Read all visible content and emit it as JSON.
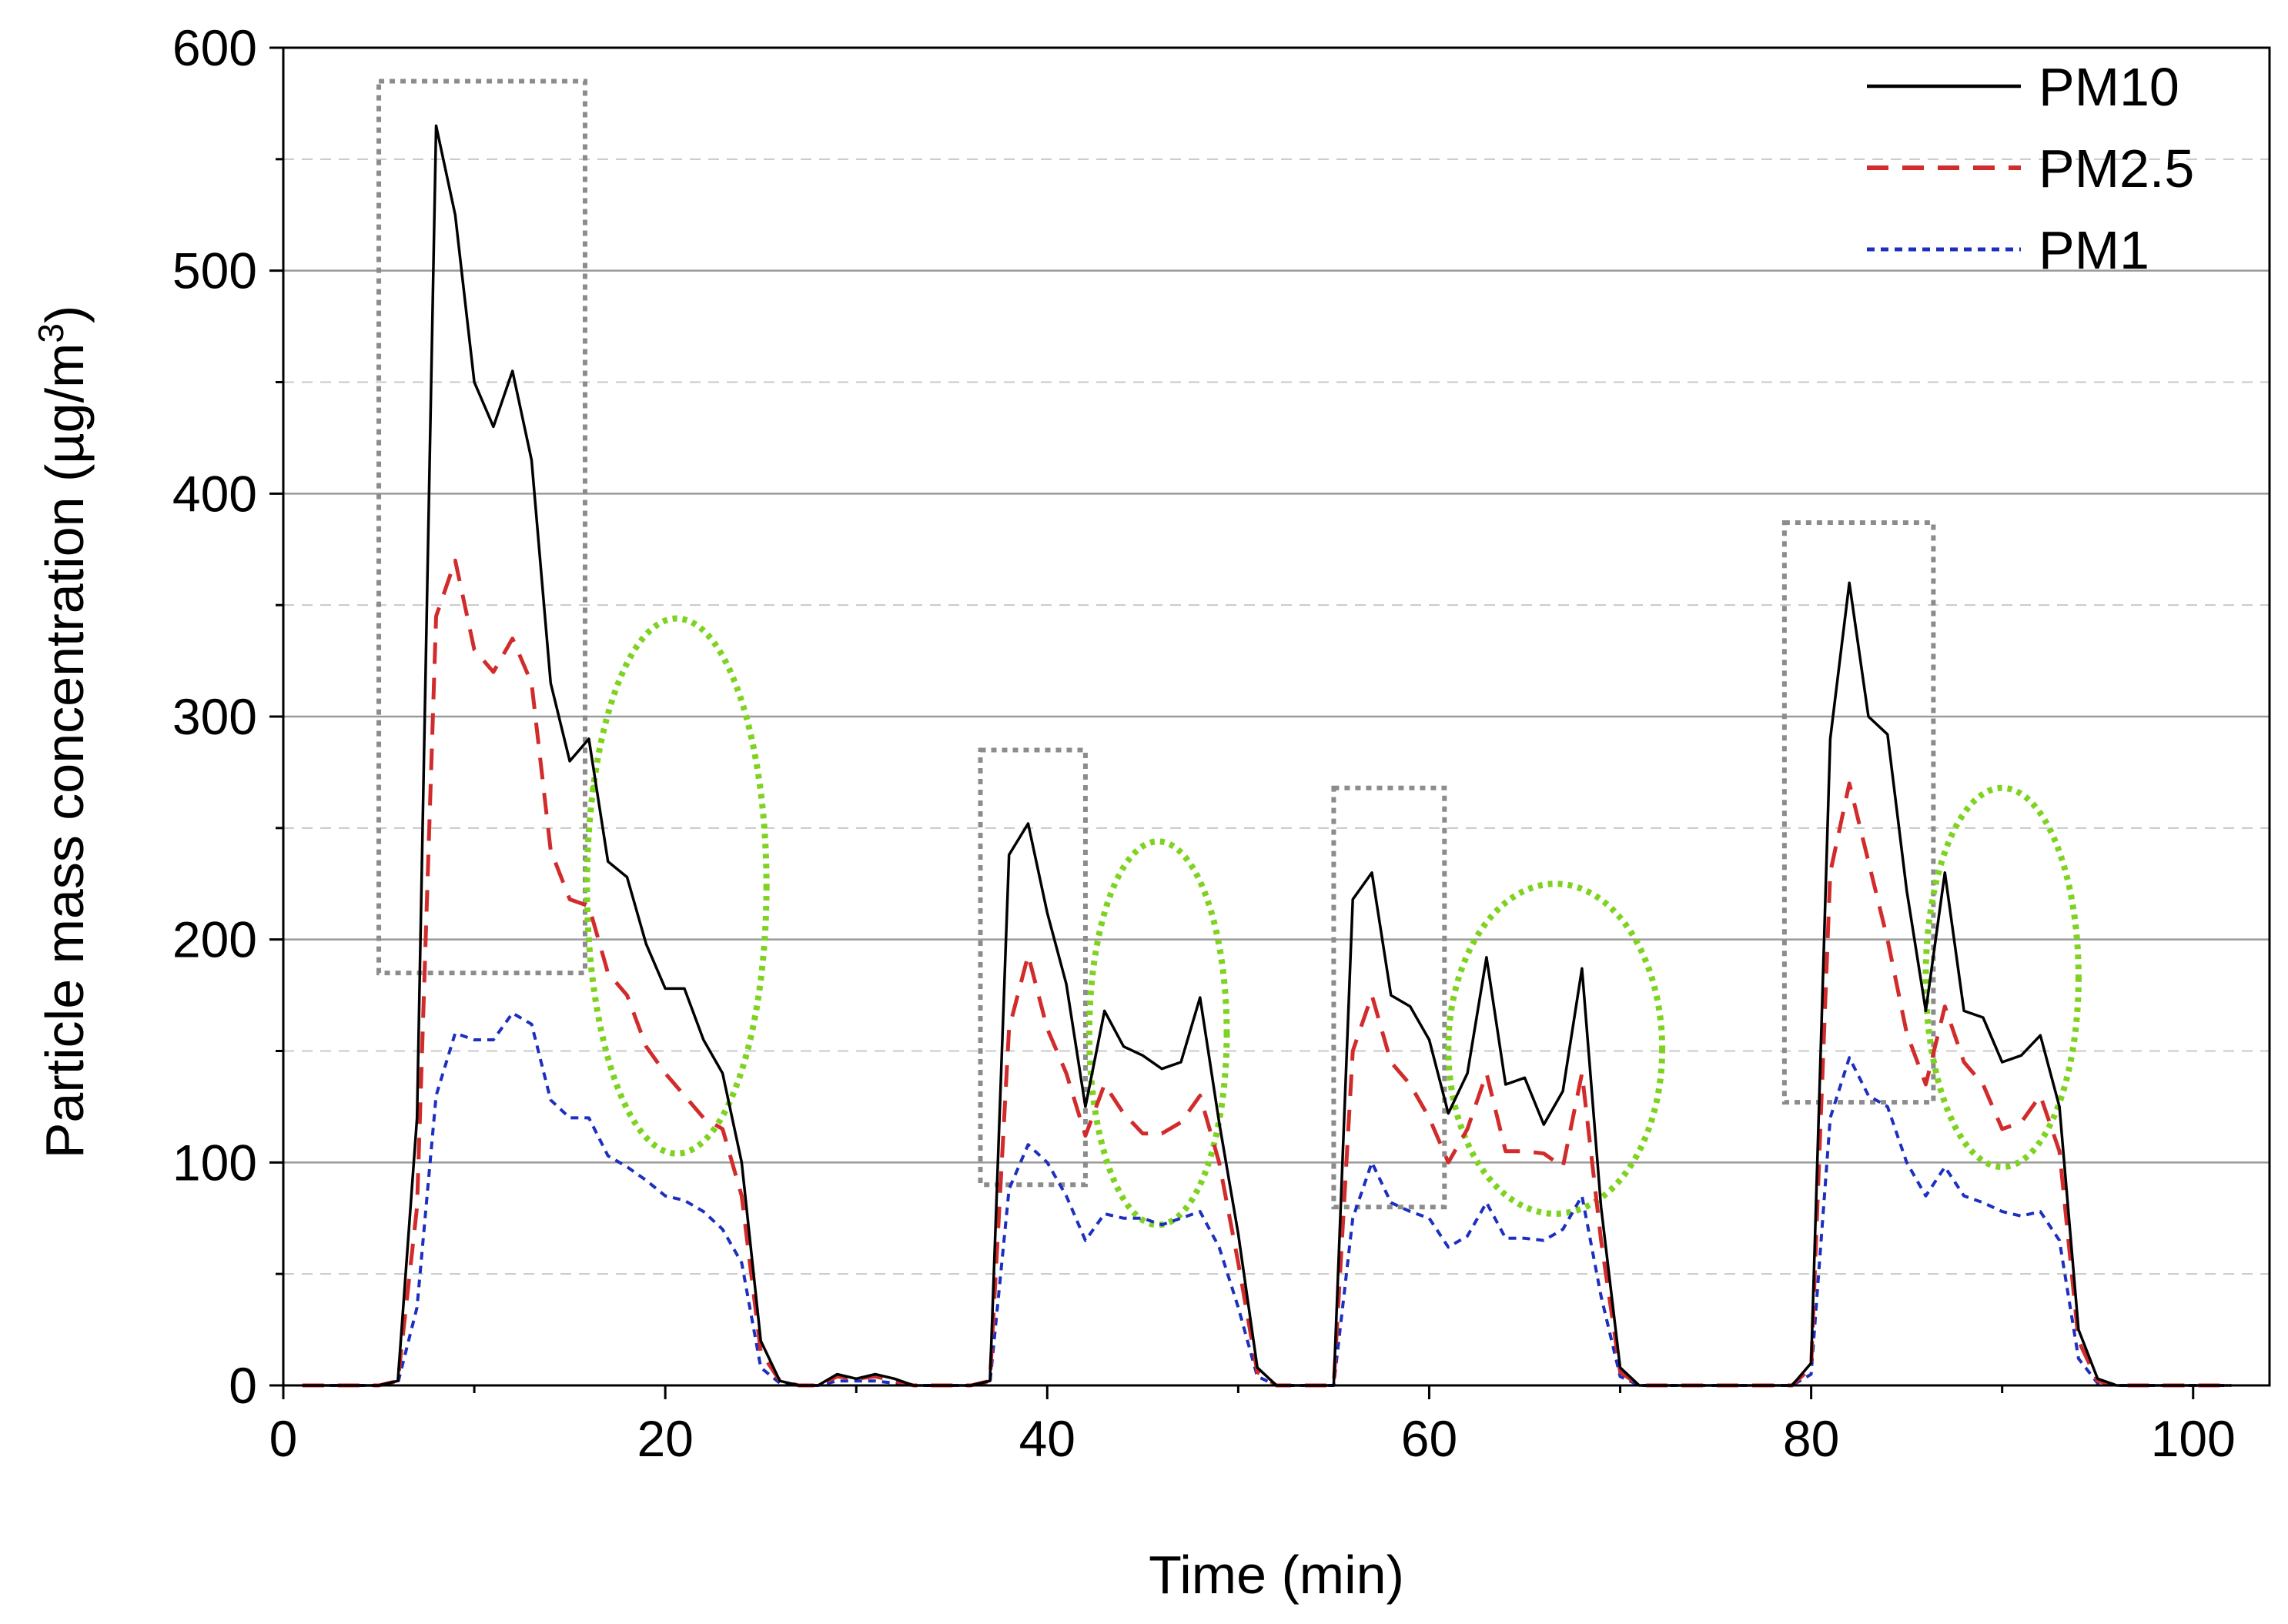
{
  "chart_data": {
    "type": "line",
    "title": "",
    "xlabel": "Time (min)",
    "ylabel_parts": [
      "Particle mass concentration (",
      "µ",
      "g/m",
      "3",
      ")"
    ],
    "xlim": [
      0,
      104
    ],
    "ylim": [
      0,
      600
    ],
    "xticks": [
      0,
      20,
      40,
      60,
      80,
      100
    ],
    "xtick_labels": [
      "0",
      "20",
      "40",
      "60",
      "80",
      "100"
    ],
    "yticks": [
      0,
      100,
      200,
      300,
      400,
      500,
      600
    ],
    "ytick_labels": [
      "0",
      "100",
      "200",
      "300",
      "400",
      "500",
      "600"
    ],
    "major_gridlines": [
      100,
      200,
      300,
      400,
      500
    ],
    "minor_gridlines": [
      50,
      150,
      250,
      350,
      450,
      550
    ],
    "legend_position": "top-right",
    "x": [
      1,
      2,
      3,
      4,
      5,
      6,
      7,
      8,
      9,
      10,
      11,
      12,
      13,
      14,
      15,
      16,
      17,
      18,
      19,
      20,
      21,
      22,
      23,
      24,
      25,
      26,
      27,
      28,
      29,
      30,
      31,
      32,
      33,
      34,
      35,
      36,
      37,
      38,
      39,
      40,
      41,
      42,
      43,
      44,
      45,
      46,
      47,
      48,
      49,
      50,
      51,
      52,
      53,
      54,
      55,
      56,
      57,
      58,
      59,
      60,
      61,
      62,
      63,
      64,
      65,
      66,
      67,
      68,
      69,
      70,
      71,
      72,
      73,
      74,
      75,
      76,
      77,
      78,
      79,
      80,
      81,
      82,
      83,
      84,
      85,
      86,
      87,
      88,
      89,
      90,
      91,
      92,
      93,
      94,
      95,
      96,
      97,
      98,
      99,
      100,
      101,
      102
    ],
    "series": [
      {
        "name": "PM10",
        "color": "#000000",
        "style": "solid",
        "values": [
          0,
          0,
          0,
          0,
          0,
          2,
          120,
          565,
          525,
          450,
          430,
          455,
          415,
          315,
          280,
          290,
          235,
          228,
          198,
          178,
          178,
          155,
          140,
          100,
          20,
          2,
          0,
          0,
          5,
          3,
          5,
          3,
          0,
          0,
          0,
          0,
          2,
          238,
          252,
          212,
          180,
          125,
          168,
          152,
          148,
          142,
          145,
          174,
          118,
          68,
          8,
          0,
          0,
          0,
          0,
          218,
          230,
          175,
          170,
          155,
          122,
          140,
          192,
          135,
          138,
          117,
          132,
          187,
          80,
          8,
          0,
          0,
          0,
          0,
          0,
          0,
          0,
          0,
          0,
          10,
          290,
          360,
          300,
          292,
          222,
          168,
          230,
          168,
          165,
          145,
          148,
          157,
          125,
          25,
          3,
          0,
          0,
          0,
          0,
          0,
          0,
          0
        ]
      },
      {
        "name": "PM2.5",
        "color": "#d22b2b",
        "style": "dashed",
        "values": [
          0,
          0,
          0,
          0,
          0,
          2,
          80,
          345,
          370,
          330,
          320,
          335,
          315,
          240,
          218,
          215,
          185,
          175,
          152,
          140,
          130,
          120,
          115,
          85,
          15,
          2,
          0,
          0,
          4,
          3,
          4,
          2,
          0,
          0,
          0,
          0,
          2,
          160,
          193,
          160,
          140,
          112,
          135,
          122,
          113,
          113,
          118,
          130,
          100,
          55,
          6,
          0,
          0,
          0,
          0,
          150,
          175,
          145,
          135,
          120,
          100,
          115,
          140,
          105,
          105,
          104,
          98,
          140,
          65,
          6,
          0,
          0,
          0,
          0,
          0,
          0,
          0,
          0,
          0,
          8,
          230,
          270,
          235,
          200,
          158,
          135,
          170,
          145,
          135,
          115,
          118,
          130,
          105,
          20,
          2,
          0,
          0,
          0,
          0,
          0,
          0,
          0
        ]
      },
      {
        "name": "PM1",
        "color": "#1c2fbf",
        "style": "dotted",
        "values": [
          0,
          0,
          0,
          0,
          0,
          1,
          35,
          130,
          158,
          155,
          155,
          167,
          162,
          128,
          120,
          120,
          103,
          98,
          92,
          85,
          83,
          78,
          70,
          55,
          8,
          1,
          0,
          0,
          2,
          2,
          2,
          1,
          0,
          0,
          0,
          0,
          1,
          88,
          108,
          100,
          85,
          65,
          77,
          75,
          75,
          72,
          75,
          78,
          62,
          35,
          4,
          0,
          0,
          0,
          0,
          75,
          100,
          82,
          78,
          75,
          62,
          67,
          82,
          66,
          66,
          65,
          70,
          85,
          40,
          4,
          0,
          0,
          0,
          0,
          0,
          0,
          0,
          0,
          0,
          5,
          120,
          147,
          130,
          125,
          100,
          85,
          98,
          85,
          82,
          78,
          76,
          78,
          65,
          12,
          1,
          0,
          0,
          0,
          0,
          0,
          0,
          0
        ]
      }
    ],
    "annotations": {
      "rectangles": [
        {
          "x0": 5,
          "x1": 15.8,
          "y0": 185,
          "y1": 585
        },
        {
          "x0": 36.5,
          "x1": 42,
          "y0": 90,
          "y1": 285
        },
        {
          "x0": 55,
          "x1": 60.8,
          "y0": 80,
          "y1": 268
        },
        {
          "x0": 78.6,
          "x1": 86.4,
          "y0": 127,
          "y1": 387
        }
      ],
      "ellipses": [
        {
          "cx": 20.6,
          "cy": 224,
          "rx": 4.7,
          "ry": 120
        },
        {
          "cx": 45.8,
          "cy": 158,
          "rx": 3.6,
          "ry": 86
        },
        {
          "cx": 66.6,
          "cy": 151,
          "rx": 5.6,
          "ry": 74
        },
        {
          "cx": 90.0,
          "cy": 183,
          "rx": 4.0,
          "ry": 85
        }
      ],
      "rectangle_color": "#8c8c8c",
      "ellipse_color": "#7ed321"
    }
  }
}
